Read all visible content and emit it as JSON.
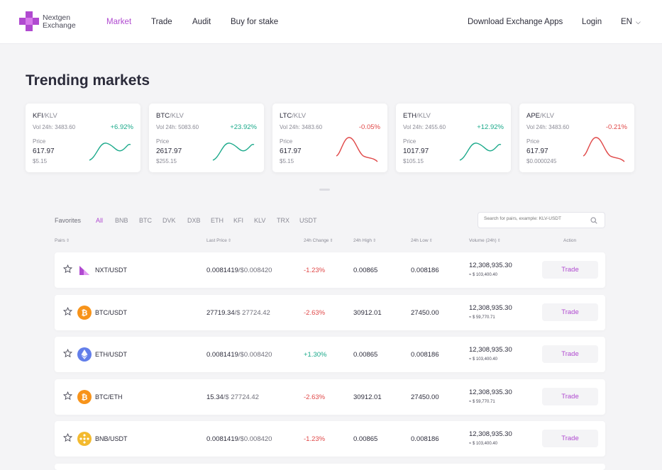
{
  "brand": {
    "name_line1": "Nextgen",
    "name_line2": "Exchange",
    "logo_color": "#b04ad0"
  },
  "nav": {
    "items": [
      {
        "label": "Market",
        "active": true
      },
      {
        "label": "Trade",
        "active": false
      },
      {
        "label": "Audit",
        "active": false
      },
      {
        "label": "Buy for stake",
        "active": false
      }
    ],
    "download": "Download Exchange Apps",
    "login": "Login",
    "language": "EN"
  },
  "page_title": "Trending markets",
  "trending": [
    {
      "base": "KFI",
      "quote": "/KLV",
      "vol": "Vol 24h: 3483.60",
      "change": "+6.92%",
      "direction": "up",
      "price_label": "Price",
      "price": "617.97",
      "sub": "$5.15"
    },
    {
      "base": "BTC",
      "quote": "/KLV",
      "vol": "Vol 24h: 5083.60",
      "change": "+23.92%",
      "direction": "up",
      "price_label": "Price",
      "price": "2617.97",
      "sub": "$255.15"
    },
    {
      "base": "LTC",
      "quote": "/KLV",
      "vol": "Vol 24h: 3483.60",
      "change": "-0.05%",
      "direction": "down",
      "price_label": "Price",
      "price": "617.97",
      "sub": "$5.15"
    },
    {
      "base": "ETH",
      "quote": "/KLV",
      "vol": "Vol 24h: 2455.60",
      "change": "+12.92%",
      "direction": "up",
      "price_label": "Price",
      "price": "1017.97",
      "sub": "$105.15"
    },
    {
      "base": "APE",
      "quote": "/KLV",
      "vol": "Vol 24h: 3483.60",
      "change": "-0.21%",
      "direction": "down",
      "price_label": "Price",
      "price": "617.97",
      "sub": "$0.0000245"
    }
  ],
  "filters": {
    "favorites": "Favorites",
    "items": [
      "All",
      "BNB",
      "BTC",
      "DVK",
      "DXB",
      "ETH",
      "KFI",
      "KLV",
      "TRX",
      "USDT"
    ],
    "active": "All"
  },
  "search": {
    "placeholder": "Search for pairs, example: KLV-USDT"
  },
  "table": {
    "headers": {
      "pairs": "Pairs",
      "last_price": "Last Price",
      "change": "24h Change",
      "high": "24h High",
      "low": "24h Low",
      "volume": "Volume (24h)",
      "action": "Action"
    },
    "rows": [
      {
        "coin": "nxt-icon",
        "pair": "NXT/USDT",
        "last": "0.0081419",
        "last_alt": "/$0.008420",
        "change": "-1.23%",
        "direction": "down",
        "high": "0.00865",
        "low": "0.008186",
        "volume": "12,308,935.30",
        "volume_usd": "≈ $ 103,400.40",
        "action": "Trade"
      },
      {
        "coin": "btc-icon",
        "pair": "BTC/USDT",
        "last": "27719.34",
        "last_alt": "/$ 27724.42",
        "change": "-2.63%",
        "direction": "down",
        "high": "30912.01",
        "low": "27450.00",
        "volume": "12,308,935.30",
        "volume_usd": "≈ $ 59,770.71",
        "action": "Trade"
      },
      {
        "coin": "eth-icon",
        "pair": "ETH/USDT",
        "last": "0.0081419",
        "last_alt": "/$0.008420",
        "change": "+1.30%",
        "direction": "up",
        "high": "0.00865",
        "low": "0.008186",
        "volume": "12,308,935.30",
        "volume_usd": "≈ $ 103,400.40",
        "action": "Trade"
      },
      {
        "coin": "btc-icon",
        "pair": "BTC/ETH",
        "last": "15.34",
        "last_alt": "/$ 27724.42",
        "change": "-2.63%",
        "direction": "down",
        "high": "30912.01",
        "low": "27450.00",
        "volume": "12,308,935.30",
        "volume_usd": "≈ $ 59,770.71",
        "action": "Trade"
      },
      {
        "coin": "bnb-icon",
        "pair": "BNB/USDT",
        "last": "0.0081419",
        "last_alt": "/$0.008420",
        "change": "-1.23%",
        "direction": "down",
        "high": "0.00865",
        "low": "0.008186",
        "volume": "12,308,935.30",
        "volume_usd": "≈ $ 103,400.40",
        "action": "Trade"
      }
    ]
  },
  "colors": {
    "accent": "#b04ad0",
    "positive": "#1aa98a",
    "negative": "#e04848",
    "btc": "#f7931a",
    "eth": "#627eea",
    "bnb": "#f3ba2f"
  }
}
